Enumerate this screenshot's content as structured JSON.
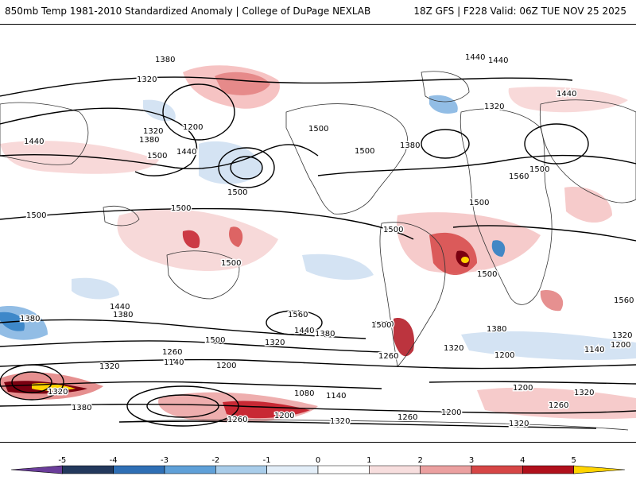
{
  "header": {
    "title": "850mb Temp 1981-2010 Standardized Anomaly | College of DuPage NEXLAB",
    "run_info": "18Z GFS | F228 Valid: 06Z TUE NOV 25 2025"
  },
  "map": {
    "contour_labels": [
      "1380",
      "1320",
      "1320",
      "1380",
      "1200",
      "1500",
      "1440",
      "1500",
      "1500",
      "1440",
      "1440",
      "1500",
      "1380",
      "1320",
      "1440",
      "1500",
      "1440",
      "1560",
      "1500",
      "1500",
      "1500",
      "1500",
      "1500",
      "1500",
      "1500",
      "1440",
      "1380",
      "1380",
      "1500",
      "1440",
      "1380",
      "1320",
      "1560",
      "1500",
      "1380",
      "1320",
      "1260",
      "1260",
      "1140",
      "1200",
      "1200",
      "1320",
      "1320",
      "1080",
      "1140",
      "1200",
      "1380",
      "1260",
      "1320",
      "1260",
      "1200",
      "1320",
      "1260",
      "1200",
      "1320",
      "1140",
      "1320",
      "1200",
      "1560"
    ],
    "colors": {
      "contour": "#000000",
      "land_outline": "#333333",
      "warm_light": "#f6c9c9",
      "warm_mid": "#e27c7c",
      "warm_strong": "#c1121f",
      "warm_extreme": "#7a0010",
      "yellow_peak": "#ffd400",
      "cool_light": "#cfe0f2",
      "cool_mid": "#7fb2e0",
      "cool_strong": "#2f7fc4"
    }
  },
  "colorbar": {
    "ticks": [
      "-5",
      "-4",
      "-3",
      "-2",
      "-1",
      "0",
      "1",
      "2",
      "3",
      "4",
      "5"
    ],
    "colors": [
      "#6a3d9a",
      "#23395d",
      "#2f6fb5",
      "#5fa0d8",
      "#a9cdea",
      "#e3eef8",
      "#ffffff",
      "#f7dede",
      "#eba0a0",
      "#d64646",
      "#b0101c",
      "#ffd400"
    ]
  }
}
